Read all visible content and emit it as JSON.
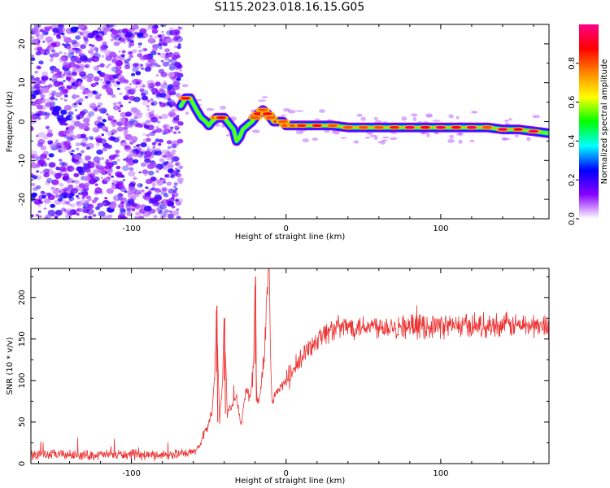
{
  "title": "S115.2023.018.16.15.G05",
  "chart_data": [
    {
      "type": "heatmap",
      "title": "S115.2023.018.16.15.G05",
      "xlabel": "Height of straight line (km)",
      "ylabel": "Frequency (Hz)",
      "xlim": [
        -165,
        170
      ],
      "ylim": [
        -25,
        25
      ],
      "xticks": [
        -100,
        0,
        100
      ],
      "xtick_labels": [
        "-100",
        "0",
        "100"
      ],
      "yticks": [
        -20,
        -10,
        0,
        10,
        20
      ],
      "ytick_labels": [
        "-20",
        "-10",
        "0",
        "10",
        "20"
      ],
      "noise_region_x": [
        -165,
        -68
      ],
      "ridge_x": [
        -68,
        -65,
        -62,
        -58,
        -55,
        -52,
        -50,
        -48,
        -45,
        -42,
        -40,
        -38,
        -36,
        -34,
        -32,
        -30,
        -28,
        -25,
        -22,
        -20,
        -18,
        -15,
        -12,
        -10,
        -8,
        -5,
        -2,
        0,
        5,
        10,
        20,
        30,
        40,
        50,
        60,
        70,
        80,
        90,
        100,
        110,
        120,
        130,
        140,
        150,
        160,
        170
      ],
      "ridge_freq": [
        4,
        6,
        6,
        3,
        1,
        0,
        -1,
        0,
        1,
        1,
        1,
        0,
        -1,
        -2,
        -5,
        -4,
        -2,
        -1,
        0,
        1,
        2,
        3,
        2,
        1,
        0,
        0,
        0,
        -1,
        -1,
        -1,
        -1,
        -1,
        -1.5,
        -1.5,
        -1.5,
        -1.5,
        -1.5,
        -1.5,
        -1.5,
        -1.5,
        -1.5,
        -1.5,
        -2,
        -2,
        -2.5,
        -3
      ],
      "ridge_amplitude": [
        0.5,
        0.9,
        0.7,
        0.4,
        0.5,
        0.6,
        0.4,
        0.6,
        0.8,
        0.9,
        0.7,
        0.5,
        0.5,
        0.6,
        0.5,
        0.6,
        0.7,
        0.6,
        0.7,
        0.8,
        0.9,
        0.8,
        0.9,
        0.8,
        0.7,
        0.9,
        0.8,
        0.8,
        0.8,
        0.85,
        0.9,
        0.8,
        0.8,
        0.8,
        0.8,
        0.85,
        0.95,
        0.9,
        0.95,
        0.9,
        0.95,
        0.8,
        0.95,
        0.9,
        0.95,
        0.7
      ]
    },
    {
      "type": "colorbar",
      "label": "Normalized spectral amplitude",
      "range": [
        0,
        1
      ],
      "ticks": [
        0,
        0.2,
        0.4,
        0.6,
        0.8
      ],
      "tick_labels": [
        "0.0",
        "0.2",
        "0.4",
        "0.6",
        "0.8"
      ],
      "colormap": [
        "#ffffff",
        "#8800ff",
        "#0000ff",
        "#00ffff",
        "#00ff00",
        "#ffff00",
        "#ff8800",
        "#ff0000",
        "#ff0088"
      ]
    },
    {
      "type": "line",
      "title": "",
      "xlabel": "Height of straight line (km)",
      "ylabel": "SNR (10 * v/v)",
      "xlim": [
        -165,
        170
      ],
      "ylim": [
        0,
        235
      ],
      "xticks": [
        -100,
        0,
        100
      ],
      "xtick_labels": [
        "-100",
        "0",
        "100"
      ],
      "yticks": [
        0,
        50,
        100,
        150,
        200
      ],
      "ytick_labels": [
        "0",
        "50",
        "100",
        "150",
        "200"
      ],
      "color": "#ee3333",
      "series": [
        {
          "name": "SNR",
          "x": [
            -165,
            -150,
            -130,
            -110,
            -90,
            -75,
            -62,
            -56,
            -52,
            -48,
            -46,
            -45,
            -43,
            -41,
            -40,
            -38,
            -35,
            -32,
            -29,
            -26,
            -23,
            -21,
            -20,
            -19,
            -17,
            -14,
            -12,
            -11,
            -10,
            -9,
            -7,
            -4,
            0,
            5,
            10,
            15,
            20,
            25,
            30,
            40,
            50,
            60,
            80,
            100,
            120,
            140,
            160,
            170
          ],
          "values": [
            10,
            11,
            10,
            11,
            10,
            11,
            12,
            20,
            40,
            60,
            110,
            190,
            50,
            100,
            175,
            60,
            70,
            80,
            45,
            90,
            80,
            120,
            225,
            75,
            80,
            130,
            210,
            240,
            120,
            70,
            85,
            90,
            100,
            112,
            125,
            140,
            150,
            157,
            162,
            165,
            166,
            166,
            165,
            166,
            166,
            167,
            166,
            166
          ]
        }
      ],
      "noise_amplitude_low": 5,
      "noise_amplitude_high": 12
    }
  ]
}
